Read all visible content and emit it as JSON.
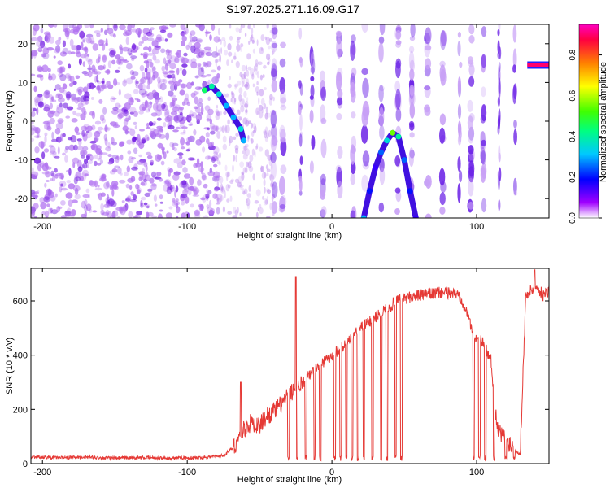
{
  "title": "S197.2025.271.16.09.G17",
  "chart_data": [
    {
      "type": "heatmap",
      "name": "spectrogram",
      "xlabel": "Height of straight line (km)",
      "ylabel": "Frequency (Hz)",
      "xlim": [
        -208,
        150
      ],
      "ylim": [
        -25,
        25
      ],
      "xticks": [
        -200,
        -100,
        0,
        100
      ],
      "yticks": [
        -20,
        -10,
        0,
        10,
        20
      ],
      "colorbar": {
        "label": "Normalized spectral amplitude",
        "range": [
          0,
          0.95
        ],
        "ticks": [
          0.0,
          0.2,
          0.4,
          0.6,
          0.8
        ]
      },
      "features": {
        "descending_track": [
          {
            "x": -88,
            "y": 8,
            "v": 0.45
          },
          {
            "x": -83,
            "y": 9,
            "v": 0.4
          },
          {
            "x": -78,
            "y": 7,
            "v": 0.35
          },
          {
            "x": -73,
            "y": 4,
            "v": 0.3
          },
          {
            "x": -68,
            "y": 1,
            "v": 0.3
          },
          {
            "x": -63,
            "y": -2,
            "v": 0.35
          },
          {
            "x": -61,
            "y": -5,
            "v": 0.3
          }
        ],
        "arch_track": [
          {
            "x": 22,
            "y": -25,
            "v": 0.3
          },
          {
            "x": 26,
            "y": -18,
            "v": 0.2
          },
          {
            "x": 30,
            "y": -12,
            "v": 0.15
          },
          {
            "x": 34,
            "y": -8,
            "v": 0.25
          },
          {
            "x": 38,
            "y": -5,
            "v": 0.35
          },
          {
            "x": 42,
            "y": -3,
            "v": 0.55
          },
          {
            "x": 46,
            "y": -4,
            "v": 0.4
          },
          {
            "x": 50,
            "y": -10,
            "v": 0.25
          },
          {
            "x": 54,
            "y": -18,
            "v": 0.2
          },
          {
            "x": 58,
            "y": -25,
            "v": 0.15
          }
        ],
        "constant_line": [
          {
            "x": 135,
            "y": 14.5,
            "v": 0.9
          },
          {
            "x": 150,
            "y": 14.5,
            "v": 0.9
          }
        ]
      }
    },
    {
      "type": "line",
      "name": "snr",
      "xlabel": "Height of straight line (km)",
      "ylabel": "SNR (10 * v/v)",
      "xlim": [
        -208,
        150
      ],
      "ylim": [
        0,
        720
      ],
      "xticks": [
        -200,
        -100,
        0,
        100
      ],
      "yticks": [
        0,
        200,
        400,
        600
      ],
      "color": "#e53935",
      "series": [
        {
          "name": "SNR",
          "points": [
            [
              -208,
              25
            ],
            [
              -190,
              22
            ],
            [
              -170,
              24
            ],
            [
              -150,
              20
            ],
            [
              -130,
              22
            ],
            [
              -110,
              20
            ],
            [
              -90,
              22
            ],
            [
              -75,
              30
            ],
            [
              -68,
              60
            ],
            [
              -62,
              120
            ],
            [
              -56,
              150
            ],
            [
              -50,
              140
            ],
            [
              -44,
              180
            ],
            [
              -38,
              200
            ],
            [
              -32,
              240
            ],
            [
              -28,
              260
            ],
            [
              -25,
              280
            ],
            [
              -20,
              300
            ],
            [
              -15,
              330
            ],
            [
              -10,
              360
            ],
            [
              -5,
              380
            ],
            [
              0,
              400
            ],
            [
              5,
              420
            ],
            [
              10,
              440
            ],
            [
              15,
              480
            ],
            [
              20,
              500
            ],
            [
              25,
              520
            ],
            [
              30,
              540
            ],
            [
              35,
              560
            ],
            [
              40,
              580
            ],
            [
              45,
              600
            ],
            [
              50,
              610
            ],
            [
              55,
              615
            ],
            [
              60,
              620
            ],
            [
              65,
              625
            ],
            [
              70,
              628
            ],
            [
              75,
              630
            ],
            [
              80,
              630
            ],
            [
              85,
              628
            ],
            [
              88,
              620
            ],
            [
              92,
              580
            ],
            [
              95,
              530
            ],
            [
              98,
              470
            ],
            [
              102,
              460
            ],
            [
              106,
              430
            ],
            [
              110,
              380
            ],
            [
              114,
              130
            ],
            [
              118,
              100
            ],
            [
              122,
              80
            ],
            [
              126,
              60
            ],
            [
              130,
              30
            ],
            [
              134,
              620
            ],
            [
              138,
              640
            ],
            [
              142,
              650
            ],
            [
              146,
              620
            ],
            [
              150,
              640
            ]
          ]
        }
      ],
      "dropouts": [
        -30,
        -24,
        -18,
        -12,
        -8,
        2,
        6,
        10,
        14,
        18,
        22,
        28,
        34,
        38,
        44,
        48,
        98,
        102,
        106,
        112,
        120,
        126
      ],
      "spikes": [
        {
          "x": -25,
          "y": 690
        },
        {
          "x": -63,
          "y": 300
        },
        {
          "x": 140,
          "y": 715
        }
      ]
    }
  ]
}
